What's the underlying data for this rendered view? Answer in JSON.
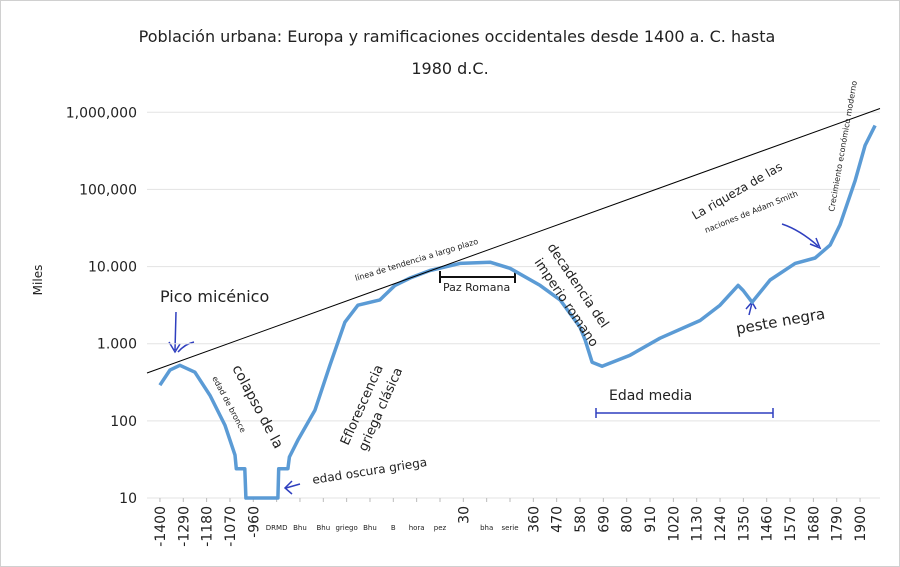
{
  "chart_data": {
    "type": "line",
    "title": [
      "Población urbana: Europa y ramificaciones occidentales desde 1400 a. C. hasta",
      "1980 d.C."
    ],
    "y_label": "Miles",
    "log_y": true,
    "grid": true,
    "xlim": [
      -1461,
      1994
    ],
    "ylim": [
      10,
      1400000
    ],
    "yticks": [
      10,
      100,
      {
        "value": 1000,
        "label": "1.000"
      },
      {
        "value": 10000,
        "label": "10.000"
      },
      {
        "value": 100000,
        "label": "100,000"
      },
      {
        "value": 1000000,
        "label": "1,000,000"
      }
    ],
    "xticks": [
      -1400,
      -1290,
      -1180,
      -1070,
      -960,
      {
        "value": -850,
        "label": "DRMD"
      },
      {
        "value": -740,
        "label": "Bhu"
      },
      {
        "value": -630,
        "label": "Bhu"
      },
      {
        "value": -520,
        "label": "griego"
      },
      {
        "value": -410,
        "label": "Bhu"
      },
      {
        "value": -300,
        "label": "B"
      },
      {
        "value": -190,
        "label": "hora"
      },
      {
        "value": -80,
        "label": "pez"
      },
      30,
      {
        "value": 140,
        "label": "bha"
      },
      {
        "value": 250,
        "label": "serie"
      },
      360,
      470,
      580,
      690,
      800,
      910,
      1020,
      1130,
      1240,
      1350,
      1460,
      1570,
      1680,
      1790,
      1900
    ],
    "series": [
      {
        "name": "Población urbana",
        "color": "#5b9bd5",
        "x": [
          -1400,
          -1353,
          -1306,
          -1235,
          -1164,
          -1094,
          -1046,
          -1040,
          -1000,
          -995,
          -844,
          -840,
          -797,
          -790,
          -750,
          -669,
          -599,
          -528,
          -467,
          -363,
          -292,
          -221,
          -127,
          14,
          156,
          250,
          392,
          486,
          580,
          604,
          637,
          684,
          816,
          957,
          1146,
          1240,
          1325,
          1349,
          1391,
          1476,
          1594,
          1688,
          1759,
          1806,
          1877,
          1924,
          1971
        ],
        "values": [
          290,
          455,
          525,
          427,
          214,
          88,
          36,
          24,
          24,
          10,
          10,
          24,
          24,
          34,
          56,
          138,
          525,
          1900,
          3160,
          3700,
          5700,
          7100,
          8900,
          11000,
          11400,
          9500,
          5700,
          3700,
          1640,
          1120,
          575,
          510,
          710,
          1180,
          2000,
          3160,
          5700,
          4900,
          3450,
          6700,
          11000,
          12900,
          19000,
          35000,
          131000,
          372000,
          674000
        ]
      },
      {
        "name": "línea de tendencia a largo plazo",
        "color": "#000000",
        "x": [
          -1461,
          1994
        ],
        "values": [
          417,
          1120000
        ]
      }
    ],
    "annotations": [
      "Pico micénico",
      "colapso de la",
      "edad de bronce",
      "edad oscura griega",
      "Eflorescencia",
      "griega clásica",
      "línea de tendencia a largo plazo",
      "Paz Romana",
      "decadencia del",
      "imperio romano",
      "Edad media",
      "peste negra",
      "La riqueza de las",
      "naciones de Adam Smith",
      "Crecimiento económico moderno"
    ]
  }
}
